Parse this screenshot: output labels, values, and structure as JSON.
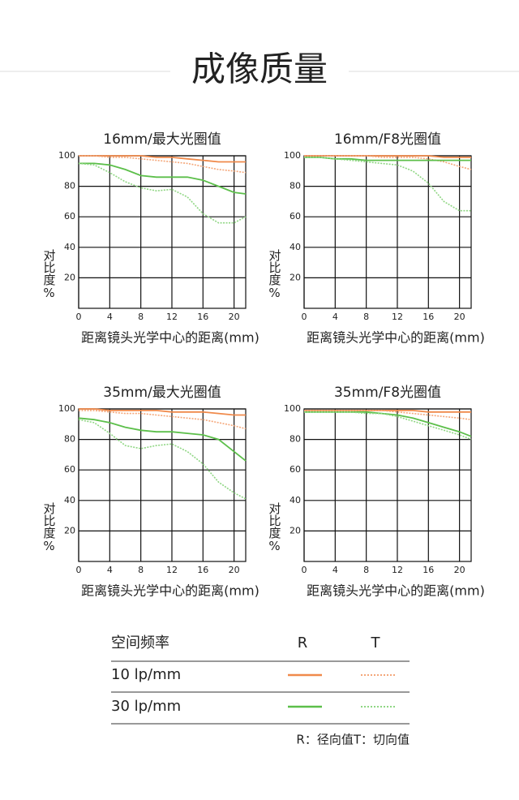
{
  "page_title": "成像质量",
  "chart_data": [
    {
      "type": "line",
      "title": "16mm/最大光圈值",
      "x_label": "距离镜头光学中心的距离(mm)",
      "y_label": "对比度%",
      "x": [
        0,
        2,
        4,
        6,
        8,
        10,
        12,
        14,
        16,
        18,
        20,
        21.5
      ],
      "xlim": [
        0,
        21.5
      ],
      "xticks": [
        0,
        4,
        8,
        12,
        16,
        20
      ],
      "ylim": [
        0,
        100
      ],
      "yticks": [
        20,
        40,
        60,
        80,
        100
      ],
      "grid": true,
      "series": [
        {
          "color": "#f08a4b",
          "style": "solid",
          "values": [
            100,
            100,
            100,
            100,
            100,
            99,
            99,
            98,
            97,
            96,
            96,
            96
          ]
        },
        {
          "color": "#f4a77a",
          "style": "dashed",
          "values": [
            100,
            100,
            99,
            99,
            98,
            97,
            96,
            95,
            93,
            91,
            90,
            89
          ]
        },
        {
          "color": "#5cbf4a",
          "style": "solid",
          "values": [
            95,
            95,
            94,
            91,
            87,
            86,
            86,
            86,
            84,
            80,
            76,
            75
          ]
        },
        {
          "color": "#8fd683",
          "style": "dashed",
          "values": [
            95,
            94,
            89,
            83,
            79,
            77,
            78,
            73,
            62,
            56,
            56,
            60
          ]
        }
      ]
    },
    {
      "type": "line",
      "title": "16mm/F8光圈值",
      "x_label": "距离镜头光学中心的距离(mm)",
      "y_label": "对比度%",
      "x": [
        0,
        2,
        4,
        6,
        8,
        10,
        12,
        14,
        16,
        18,
        20,
        21.5
      ],
      "xlim": [
        0,
        21.5
      ],
      "xticks": [
        0,
        4,
        8,
        12,
        16,
        20
      ],
      "ylim": [
        0,
        100
      ],
      "yticks": [
        20,
        40,
        60,
        80,
        100
      ],
      "grid": true,
      "series": [
        {
          "color": "#f08a4b",
          "style": "solid",
          "values": [
            100,
            100,
            100,
            100,
            100,
            100,
            100,
            100,
            100,
            99,
            99,
            99
          ]
        },
        {
          "color": "#f4a77a",
          "style": "dashed",
          "values": [
            100,
            100,
            100,
            100,
            100,
            99,
            99,
            99,
            98,
            96,
            93,
            91
          ]
        },
        {
          "color": "#5cbf4a",
          "style": "solid",
          "values": [
            99,
            99,
            98,
            98,
            97,
            97,
            97,
            97,
            97,
            97,
            97,
            97
          ]
        },
        {
          "color": "#8fd683",
          "style": "dashed",
          "values": [
            99,
            99,
            98,
            97,
            96,
            95,
            94,
            90,
            82,
            70,
            64,
            64
          ]
        }
      ]
    },
    {
      "type": "line",
      "title": "35mm/最大光圈值",
      "x_label": "距离镜头光学中心的距离(mm)",
      "y_label": "对比度%",
      "x": [
        0,
        2,
        4,
        6,
        8,
        10,
        12,
        14,
        16,
        18,
        20,
        21.5
      ],
      "xlim": [
        0,
        21.5
      ],
      "xticks": [
        0,
        4,
        8,
        12,
        16,
        20
      ],
      "ylim": [
        0,
        100
      ],
      "yticks": [
        20,
        40,
        60,
        80,
        100
      ],
      "grid": true,
      "series": [
        {
          "color": "#f08a4b",
          "style": "solid",
          "values": [
            100,
            100,
            99,
            99,
            99,
            99,
            98,
            98,
            98,
            97,
            96,
            96
          ]
        },
        {
          "color": "#f4a77a",
          "style": "dashed",
          "values": [
            99,
            99,
            98,
            97,
            97,
            96,
            95,
            94,
            93,
            91,
            89,
            87
          ]
        },
        {
          "color": "#5cbf4a",
          "style": "solid",
          "values": [
            94,
            93,
            91,
            88,
            86,
            85,
            85,
            84,
            83,
            80,
            72,
            66
          ]
        },
        {
          "color": "#8fd683",
          "style": "dashed",
          "values": [
            93,
            91,
            84,
            76,
            74,
            76,
            77,
            72,
            64,
            52,
            45,
            41
          ]
        }
      ]
    },
    {
      "type": "line",
      "title": "35mm/F8光圈值",
      "x_label": "距离镜头光学中心的距离(mm)",
      "y_label": "对比度%",
      "x": [
        0,
        2,
        4,
        6,
        8,
        10,
        12,
        14,
        16,
        18,
        20,
        21.5
      ],
      "xlim": [
        0,
        21.5
      ],
      "xticks": [
        0,
        4,
        8,
        12,
        16,
        20
      ],
      "ylim": [
        0,
        100
      ],
      "yticks": [
        20,
        40,
        60,
        80,
        100
      ],
      "grid": true,
      "series": [
        {
          "color": "#f08a4b",
          "style": "solid",
          "values": [
            99,
            99,
            99,
            99,
            99,
            99,
            99,
            99,
            98,
            98,
            98,
            98
          ]
        },
        {
          "color": "#f4a77a",
          "style": "dashed",
          "values": [
            99,
            99,
            99,
            99,
            99,
            99,
            98,
            97,
            96,
            95,
            94,
            93
          ]
        },
        {
          "color": "#5cbf4a",
          "style": "solid",
          "values": [
            98,
            98,
            98,
            98,
            98,
            97,
            96,
            94,
            91,
            88,
            85,
            82
          ]
        },
        {
          "color": "#8fd683",
          "style": "dashed",
          "values": [
            98,
            98,
            98,
            98,
            97,
            97,
            95,
            92,
            89,
            86,
            83,
            80
          ]
        }
      ]
    }
  ],
  "legend_table": {
    "header": [
      "空间频率",
      "R",
      "T"
    ],
    "rows": [
      "10 lp/mm",
      "30 lp/mm"
    ]
  },
  "note": "R：径向值T：切向值"
}
